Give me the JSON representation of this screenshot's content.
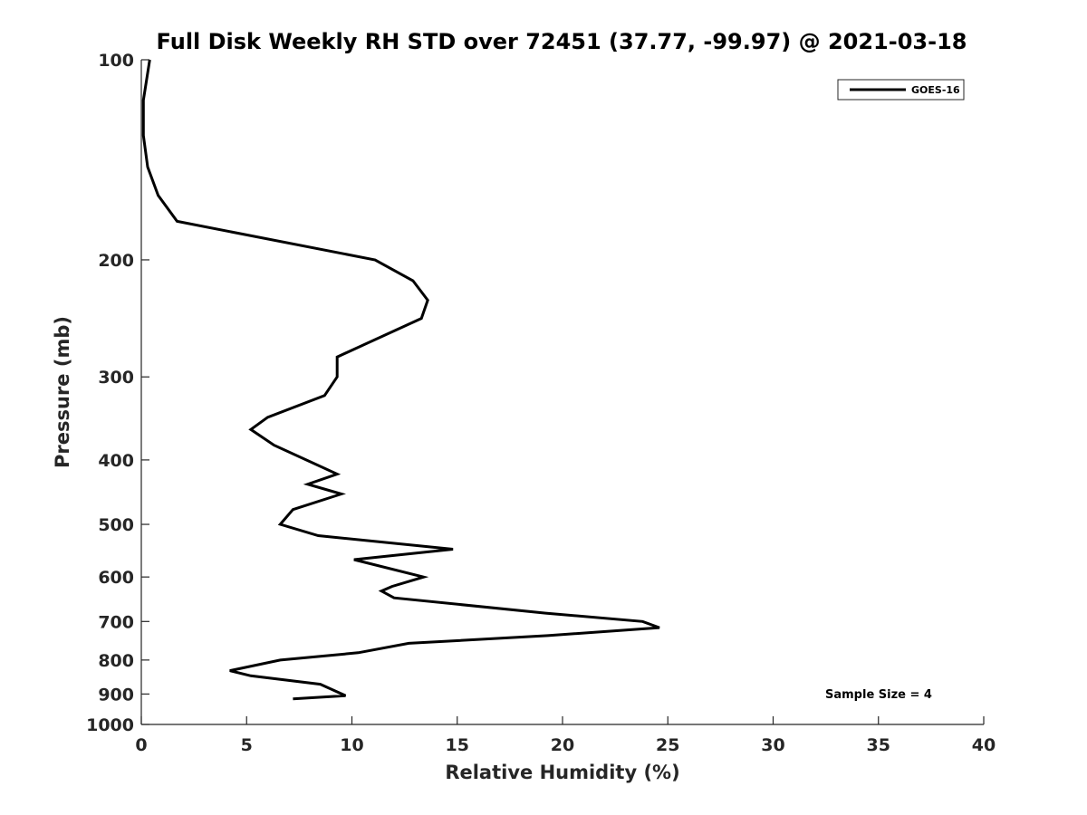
{
  "chart_data": {
    "type": "line",
    "title": "Full Disk Weekly RH STD over 72451 (37.77, -99.97) @ 2021-03-18",
    "xlabel": "Relative Humidity (%)",
    "ylabel": "Pressure (mb)",
    "xlim": [
      0,
      40
    ],
    "ylim": [
      1000,
      100
    ],
    "y_scale": "log",
    "x_ticks": [
      0,
      5,
      10,
      15,
      20,
      25,
      30,
      35,
      40
    ],
    "y_ticks": [
      100,
      200,
      300,
      400,
      500,
      600,
      700,
      800,
      900,
      1000
    ],
    "grid": false,
    "legend_position": "top-right",
    "annotation": "Sample Size = 4",
    "series": [
      {
        "name": "GOES-16",
        "color": "#000000",
        "points": [
          [
            0.4,
            100
          ],
          [
            0.1,
            115
          ],
          [
            0.1,
            130
          ],
          [
            0.3,
            145
          ],
          [
            0.8,
            160
          ],
          [
            1.7,
            175
          ],
          [
            11.1,
            200
          ],
          [
            12.9,
            215
          ],
          [
            13.6,
            230
          ],
          [
            13.3,
            245
          ],
          [
            9.3,
            280
          ],
          [
            9.3,
            300
          ],
          [
            8.7,
            320
          ],
          [
            6.0,
            345
          ],
          [
            5.2,
            360
          ],
          [
            6.3,
            380
          ],
          [
            9.3,
            420
          ],
          [
            7.9,
            435
          ],
          [
            9.5,
            450
          ],
          [
            7.2,
            475
          ],
          [
            6.6,
            500
          ],
          [
            8.4,
            520
          ],
          [
            14.8,
            545
          ],
          [
            10.1,
            565
          ],
          [
            13.4,
            600
          ],
          [
            11.9,
            620
          ],
          [
            11.4,
            630
          ],
          [
            12.0,
            645
          ],
          [
            19.2,
            680
          ],
          [
            23.8,
            700
          ],
          [
            24.6,
            715
          ],
          [
            19.3,
            735
          ],
          [
            12.7,
            755
          ],
          [
            10.3,
            780
          ],
          [
            6.6,
            800
          ],
          [
            4.2,
            830
          ],
          [
            5.2,
            845
          ],
          [
            8.5,
            870
          ],
          [
            9.7,
            905
          ],
          [
            7.2,
            915
          ]
        ]
      }
    ]
  }
}
